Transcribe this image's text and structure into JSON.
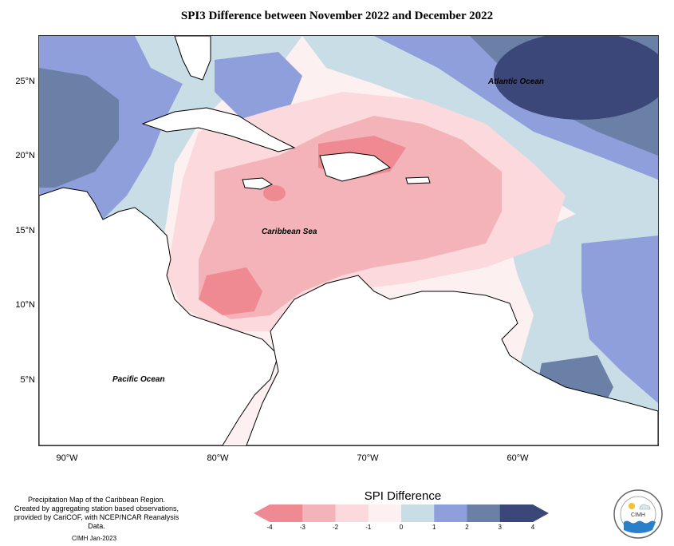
{
  "title": "SPI3 Difference between November 2022 and December 2022",
  "latitude_labels": [
    "25°N",
    "20°N",
    "15°N",
    "10°N",
    "5°N"
  ],
  "longitude_labels": [
    "90°W",
    "80°W",
    "70°W",
    "60°W"
  ],
  "sea_labels": {
    "atlantic": "Atlantic Ocean",
    "caribbean": "Caribbean Sea",
    "pacific": "Pacific Ocean"
  },
  "caption": "Precipitation Map of the Caribbean Region.\nCreated by aggregating station based observations,\nprovided by CariCOF, with NCEP/NCAR Reanalysis Data.",
  "credit": "CIMH Jan-2023",
  "legend": {
    "title": "SPI Difference",
    "ticks": [
      "-4",
      "-3",
      "-2",
      "-1",
      "0",
      "1",
      "2",
      "3",
      "4"
    ],
    "colors": [
      "#f08a92",
      "#f3b3b8",
      "#fbd9dc",
      "#fdf0f1",
      "#c8dde6",
      "#8f9fdc",
      "#6a80a6",
      "#3c4779"
    ]
  },
  "logo_text": "CIMH",
  "colors": {
    "strong_dry": "#f08a92",
    "dry": "#f3b3b8",
    "slight_dry": "#fbd9dc",
    "near_normal": "#fdf0f1",
    "slight_wet": "#c8dde6",
    "wet": "#8f9fdc",
    "very_wet": "#6a80a6",
    "extreme_wet": "#3c4779",
    "land": "#ffffff"
  }
}
